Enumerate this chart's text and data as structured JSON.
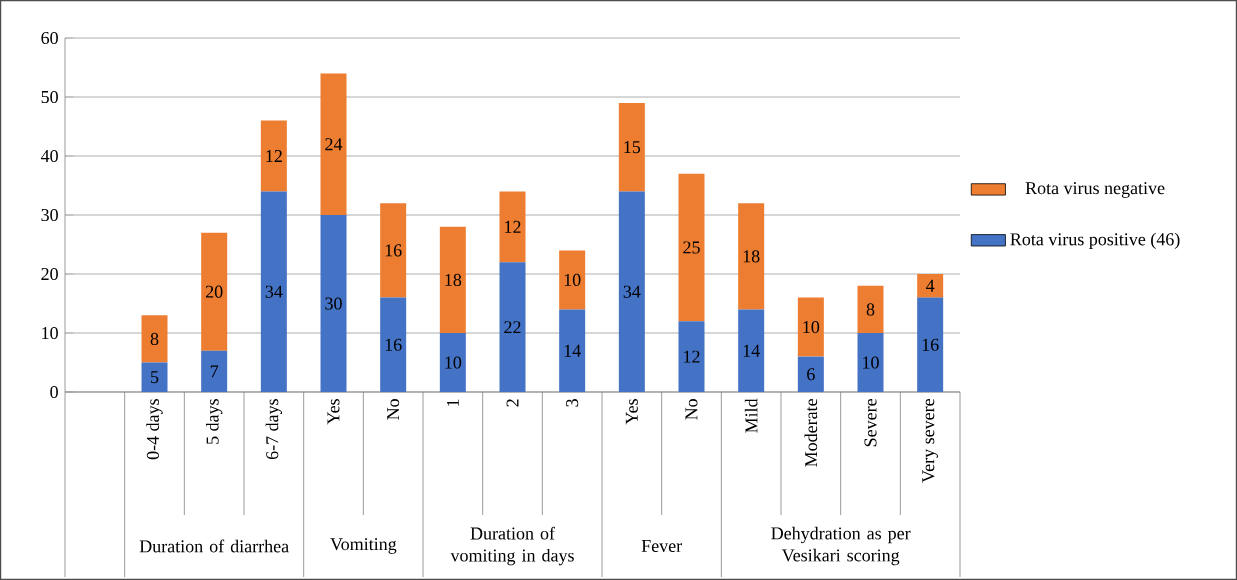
{
  "chart_data": {
    "type": "bar",
    "stacked": true,
    "categories": [
      null,
      "0-4 days",
      "5 days",
      "6-7 days",
      "Yes",
      "No",
      "1",
      "2",
      "3",
      "Yes",
      "No",
      "Mild",
      "Moderate",
      "Severe",
      "Very severe"
    ],
    "series": [
      {
        "name": "Rota virus positive (46)",
        "color": "#4472c4",
        "values": [
          null,
          5,
          7,
          34,
          30,
          16,
          10,
          22,
          14,
          34,
          12,
          14,
          6,
          10,
          16
        ]
      },
      {
        "name": "Rota virus negative",
        "color": "#ed7d31",
        "values": [
          null,
          8,
          20,
          12,
          24,
          16,
          18,
          12,
          10,
          15,
          25,
          18,
          10,
          8,
          4
        ]
      }
    ],
    "annotations": [
      "Duration of diarrhea",
      "Vomiting",
      "Duration of vomiting in days",
      "Fever",
      "Dehydration as per Vesikari scoring"
    ],
    "ylim": [
      0,
      60
    ],
    "yticks": [
      0,
      10,
      20,
      30,
      40,
      50,
      60
    ],
    "grid": "y",
    "legend": "right",
    "data_labels": true
  }
}
